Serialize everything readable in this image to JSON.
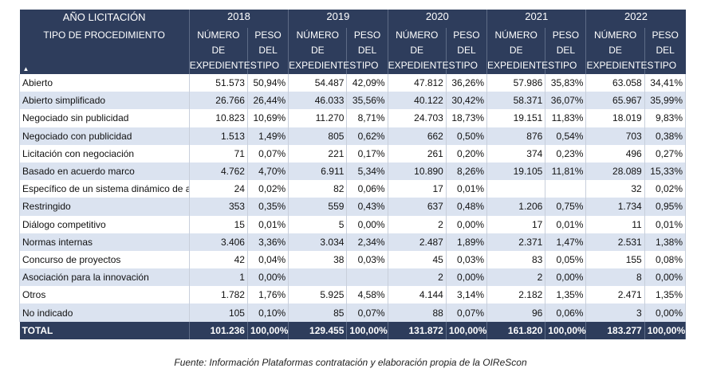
{
  "header": {
    "year_label": "AÑO LICITACIÓN",
    "type_label": "TIPO DE PROCEDIMIENTO",
    "sort_glyph": "▲",
    "years": [
      "2018",
      "2019",
      "2020",
      "2021",
      "2022"
    ],
    "num_label": "NÚMERO DE EXPEDIENTES",
    "pct_label": "PESO DEL TIPO"
  },
  "rows": [
    {
      "type": "Abierto",
      "values": [
        [
          "51.573",
          "50,94%"
        ],
        [
          "54.487",
          "42,09%"
        ],
        [
          "47.812",
          "36,26%"
        ],
        [
          "57.986",
          "35,83%"
        ],
        [
          "63.058",
          "34,41%"
        ]
      ]
    },
    {
      "type": "Abierto simplificado",
      "values": [
        [
          "26.766",
          "26,44%"
        ],
        [
          "46.033",
          "35,56%"
        ],
        [
          "40.122",
          "30,42%"
        ],
        [
          "58.371",
          "36,07%"
        ],
        [
          "65.967",
          "35,99%"
        ]
      ]
    },
    {
      "type": "Negociado sin publicidad",
      "values": [
        [
          "10.823",
          "10,69%"
        ],
        [
          "11.270",
          "8,71%"
        ],
        [
          "24.703",
          "18,73%"
        ],
        [
          "19.151",
          "11,83%"
        ],
        [
          "18.019",
          "9,83%"
        ]
      ]
    },
    {
      "type": "Negociado con publicidad",
      "values": [
        [
          "1.513",
          "1,49%"
        ],
        [
          "805",
          "0,62%"
        ],
        [
          "662",
          "0,50%"
        ],
        [
          "876",
          "0,54%"
        ],
        [
          "703",
          "0,38%"
        ]
      ]
    },
    {
      "type": "Licitación con negociación",
      "values": [
        [
          "71",
          "0,07%"
        ],
        [
          "221",
          "0,17%"
        ],
        [
          "261",
          "0,20%"
        ],
        [
          "374",
          "0,23%"
        ],
        [
          "496",
          "0,27%"
        ]
      ]
    },
    {
      "type": "Basado en acuerdo marco",
      "values": [
        [
          "4.762",
          "4,70%"
        ],
        [
          "6.911",
          "5,34%"
        ],
        [
          "10.890",
          "8,26%"
        ],
        [
          "19.105",
          "11,81%"
        ],
        [
          "28.089",
          "15,33%"
        ]
      ]
    },
    {
      "type": "Específico de un sistema dinámico de adquisición",
      "values": [
        [
          "24",
          "0,02%"
        ],
        [
          "82",
          "0,06%"
        ],
        [
          "17",
          "0,01%"
        ],
        [
          "",
          ""
        ],
        [
          "32",
          "0,02%"
        ]
      ]
    },
    {
      "type": "Restringido",
      "values": [
        [
          "353",
          "0,35%"
        ],
        [
          "559",
          "0,43%"
        ],
        [
          "637",
          "0,48%"
        ],
        [
          "1.206",
          "0,75%"
        ],
        [
          "1.734",
          "0,95%"
        ]
      ]
    },
    {
      "type": "Diálogo competitivo",
      "values": [
        [
          "15",
          "0,01%"
        ],
        [
          "5",
          "0,00%"
        ],
        [
          "2",
          "0,00%"
        ],
        [
          "17",
          "0,01%"
        ],
        [
          "11",
          "0,01%"
        ]
      ]
    },
    {
      "type": "Normas internas",
      "values": [
        [
          "3.406",
          "3,36%"
        ],
        [
          "3.034",
          "2,34%"
        ],
        [
          "2.487",
          "1,89%"
        ],
        [
          "2.371",
          "1,47%"
        ],
        [
          "2.531",
          "1,38%"
        ]
      ]
    },
    {
      "type": "Concurso de proyectos",
      "values": [
        [
          "42",
          "0,04%"
        ],
        [
          "38",
          "0,03%"
        ],
        [
          "45",
          "0,03%"
        ],
        [
          "83",
          "0,05%"
        ],
        [
          "155",
          "0,08%"
        ]
      ]
    },
    {
      "type": "Asociación para la innovación",
      "values": [
        [
          "1",
          "0,00%"
        ],
        [
          "",
          ""
        ],
        [
          "2",
          "0,00%"
        ],
        [
          "2",
          "0,00%"
        ],
        [
          "8",
          "0,00%"
        ]
      ]
    },
    {
      "type": "Otros",
      "values": [
        [
          "1.782",
          "1,76%"
        ],
        [
          "5.925",
          "4,58%"
        ],
        [
          "4.144",
          "3,14%"
        ],
        [
          "2.182",
          "1,35%"
        ],
        [
          "2.471",
          "1,35%"
        ]
      ]
    },
    {
      "type": "No indicado",
      "values": [
        [
          "105",
          "0,10%"
        ],
        [
          "85",
          "0,07%"
        ],
        [
          "88",
          "0,07%"
        ],
        [
          "96",
          "0,06%"
        ],
        [
          "3",
          "0,00%"
        ]
      ]
    }
  ],
  "total": {
    "type": "TOTAL",
    "values": [
      [
        "101.236",
        "100,00%"
      ],
      [
        "129.455",
        "100,00%"
      ],
      [
        "131.872",
        "100,00%"
      ],
      [
        "161.820",
        "100,00%"
      ],
      [
        "183.277",
        "100,00%"
      ]
    ]
  },
  "caption": "Fuente: Información Plataformas contratación y elaboración propia de la OIReScon"
}
